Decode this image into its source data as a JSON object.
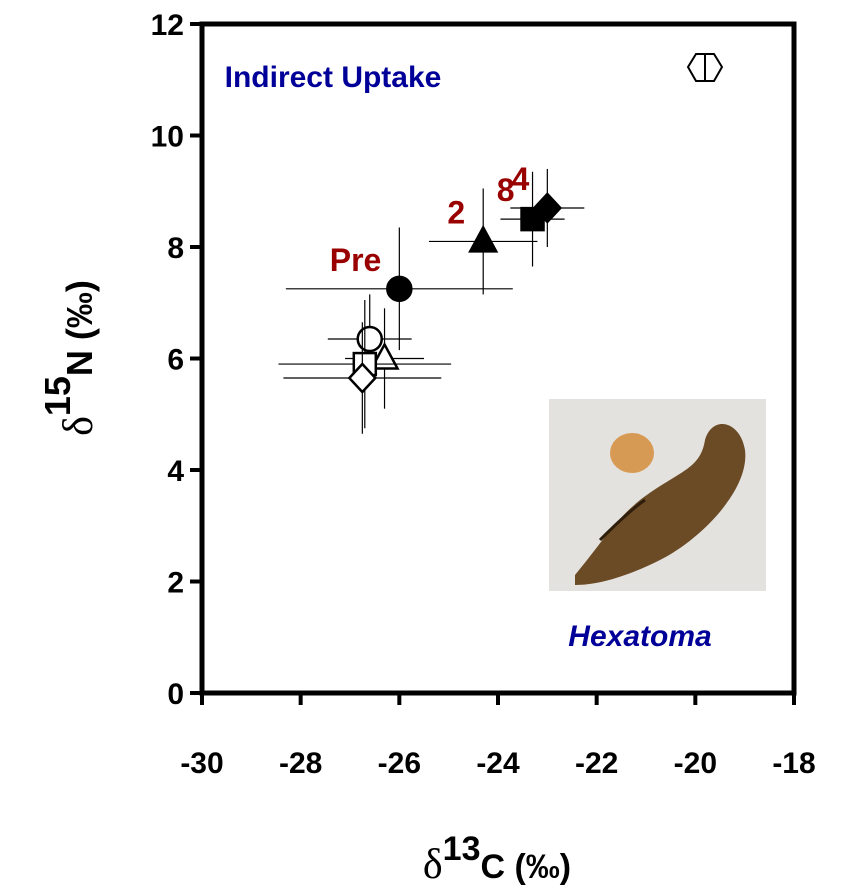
{
  "chart_data": {
    "type": "scatter",
    "x_label": {
      "symbol": "δ",
      "superscript": "13",
      "text": "C (‰)"
    },
    "y_label": {
      "symbol": "δ",
      "superscript": "15",
      "text": "N (‰)"
    },
    "annotations": {
      "uptake": "Indirect Uptake",
      "taxon": "Hexatoma"
    },
    "xlim": [
      -30,
      -18
    ],
    "xticks": [
      -30,
      -28,
      -26,
      -24,
      -22,
      -20,
      -18
    ],
    "ylim": [
      0,
      12
    ],
    "yticks": [
      0,
      2,
      4,
      6,
      8,
      10,
      12
    ],
    "label_color": "#990000",
    "series": [
      {
        "label": "Pre",
        "marker": "circle",
        "filled": true,
        "x": [
          -26.0
        ],
        "y": [
          7.25
        ],
        "xerr": [
          2.3
        ],
        "yerr": [
          1.1
        ]
      },
      {
        "label": "2",
        "marker": "triangle",
        "filled": true,
        "x": [
          -24.3
        ],
        "y": [
          8.1
        ],
        "xerr": [
          1.1
        ],
        "yerr": [
          0.95
        ]
      },
      {
        "label": "8",
        "marker": "square",
        "filled": true,
        "x": [
          -23.3
        ],
        "y": [
          8.5
        ],
        "xerr": [
          0.65
        ],
        "yerr": [
          0.85
        ]
      },
      {
        "label": "4",
        "marker": "diamond",
        "filled": true,
        "x": [
          -23.0
        ],
        "y": [
          8.7
        ],
        "xerr": [
          0.75
        ],
        "yerr": [
          0.7
        ]
      },
      {
        "marker": "circle",
        "filled": false,
        "x": [
          -26.6
        ],
        "y": [
          6.35
        ],
        "xerr": [
          0.85
        ],
        "yerr": [
          0.8
        ]
      },
      {
        "marker": "triangle",
        "filled": false,
        "x": [
          -26.3
        ],
        "y": [
          6.0
        ],
        "xerr": [
          0.8
        ],
        "yerr": [
          0.9
        ]
      },
      {
        "marker": "square",
        "filled": false,
        "x": [
          -26.7
        ],
        "y": [
          5.9
        ],
        "xerr": [
          1.75
        ],
        "yerr": [
          1.15
        ]
      },
      {
        "marker": "diamond",
        "filled": false,
        "x": [
          -26.75
        ],
        "y": [
          5.65
        ],
        "xerr": [
          1.6
        ],
        "yerr": [
          1.0
        ]
      }
    ]
  }
}
